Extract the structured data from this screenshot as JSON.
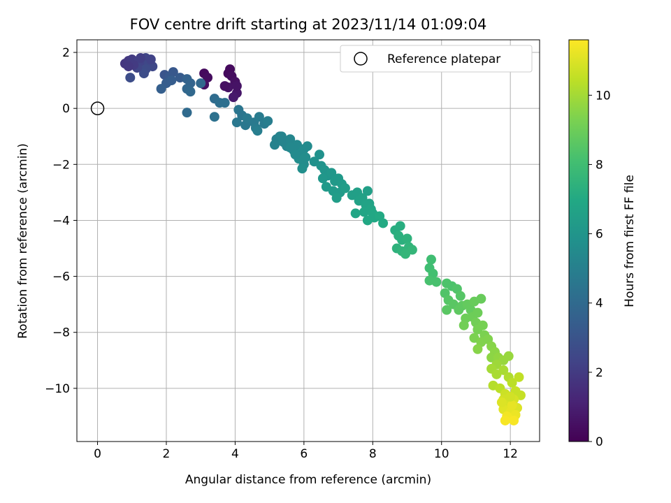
{
  "chart_data": {
    "type": "scatter",
    "title": "FOV centre drift starting at 2023/11/14 01:09:04",
    "xlabel": "Angular distance from reference (arcmin)",
    "ylabel": "Rotation from reference (arcmin)",
    "xlim": [
      -0.6,
      12.85
    ],
    "ylim": [
      -11.9,
      2.45
    ],
    "xticks": [
      0,
      2,
      4,
      6,
      8,
      10,
      12
    ],
    "yticks": [
      -10,
      -8,
      -6,
      -4,
      -2,
      0,
      2
    ],
    "grid": true,
    "legend": {
      "position": "top-right",
      "entries": [
        "Reference platepar"
      ]
    },
    "colormap": "viridis",
    "colorbar": {
      "label": "Hours from first FF file",
      "range": [
        0,
        11.6
      ],
      "ticks": [
        0,
        2,
        4,
        6,
        8,
        10
      ]
    },
    "reference_point": {
      "x": 0,
      "y": 0
    },
    "series": [
      {
        "points": [
          {
            "x": 3.1,
            "y": 1.25,
            "c": 0.3
          },
          {
            "x": 3.2,
            "y": 1.1,
            "c": 0.4
          },
          {
            "x": 3.1,
            "y": 0.85,
            "c": 0.5
          },
          {
            "x": 3.8,
            "y": 1.25,
            "c": 0.3
          },
          {
            "x": 3.85,
            "y": 1.4,
            "c": 0.3
          },
          {
            "x": 3.9,
            "y": 1.15,
            "c": 0.4
          },
          {
            "x": 4.0,
            "y": 0.95,
            "c": 0.5
          },
          {
            "x": 3.8,
            "y": 0.75,
            "c": 0.6
          },
          {
            "x": 4.05,
            "y": 0.55,
            "c": 0.7
          },
          {
            "x": 3.95,
            "y": 0.4,
            "c": 0.8
          },
          {
            "x": 3.7,
            "y": 0.8,
            "c": 0.5
          },
          {
            "x": 4.05,
            "y": 0.8,
            "c": 0.6
          },
          {
            "x": 0.8,
            "y": 1.6,
            "c": 1.8
          },
          {
            "x": 0.9,
            "y": 1.7,
            "c": 1.9
          },
          {
            "x": 1.0,
            "y": 1.75,
            "c": 2.0
          },
          {
            "x": 1.1,
            "y": 1.6,
            "c": 2.1
          },
          {
            "x": 1.2,
            "y": 1.7,
            "c": 2.2
          },
          {
            "x": 1.3,
            "y": 1.55,
            "c": 2.3
          },
          {
            "x": 1.4,
            "y": 1.8,
            "c": 2.4
          },
          {
            "x": 1.5,
            "y": 1.6,
            "c": 2.5
          },
          {
            "x": 1.6,
            "y": 1.5,
            "c": 2.5
          },
          {
            "x": 1.4,
            "y": 1.4,
            "c": 2.6
          },
          {
            "x": 1.35,
            "y": 1.25,
            "c": 2.7
          },
          {
            "x": 0.95,
            "y": 1.1,
            "c": 2.7
          },
          {
            "x": 1.15,
            "y": 1.45,
            "c": 2.4
          },
          {
            "x": 1.05,
            "y": 1.55,
            "c": 2.0
          },
          {
            "x": 0.9,
            "y": 1.5,
            "c": 1.9
          },
          {
            "x": 1.55,
            "y": 1.75,
            "c": 2.3
          },
          {
            "x": 1.25,
            "y": 1.8,
            "c": 2.1
          },
          {
            "x": 1.95,
            "y": 1.2,
            "c": 3.0
          },
          {
            "x": 2.1,
            "y": 1.15,
            "c": 3.2
          },
          {
            "x": 2.2,
            "y": 1.3,
            "c": 3.2
          },
          {
            "x": 2.4,
            "y": 1.1,
            "c": 3.3
          },
          {
            "x": 2.0,
            "y": 0.9,
            "c": 3.4
          },
          {
            "x": 1.85,
            "y": 0.7,
            "c": 3.5
          },
          {
            "x": 2.15,
            "y": 1.0,
            "c": 3.4
          },
          {
            "x": 2.6,
            "y": 1.05,
            "c": 3.6
          },
          {
            "x": 2.7,
            "y": 0.9,
            "c": 3.7
          },
          {
            "x": 2.6,
            "y": 0.7,
            "c": 3.8
          },
          {
            "x": 2.7,
            "y": 0.6,
            "c": 3.9
          },
          {
            "x": 2.6,
            "y": -0.15,
            "c": 4.0
          },
          {
            "x": 3.0,
            "y": 0.9,
            "c": 3.9
          },
          {
            "x": 3.4,
            "y": 0.35,
            "c": 4.1
          },
          {
            "x": 3.55,
            "y": 0.2,
            "c": 4.2
          },
          {
            "x": 3.7,
            "y": 0.2,
            "c": 4.2
          },
          {
            "x": 3.4,
            "y": -0.3,
            "c": 4.3
          },
          {
            "x": 4.1,
            "y": -0.05,
            "c": 4.5
          },
          {
            "x": 4.2,
            "y": -0.25,
            "c": 4.5
          },
          {
            "x": 4.05,
            "y": -0.5,
            "c": 4.6
          },
          {
            "x": 4.3,
            "y": -0.6,
            "c": 4.6
          },
          {
            "x": 4.35,
            "y": -0.35,
            "c": 4.7
          },
          {
            "x": 4.55,
            "y": -0.5,
            "c": 4.7
          },
          {
            "x": 4.6,
            "y": -0.7,
            "c": 4.8
          },
          {
            "x": 4.7,
            "y": -0.3,
            "c": 4.8
          },
          {
            "x": 4.85,
            "y": -0.55,
            "c": 4.8
          },
          {
            "x": 4.95,
            "y": -0.45,
            "c": 4.9
          },
          {
            "x": 4.65,
            "y": -0.8,
            "c": 4.9
          },
          {
            "x": 5.2,
            "y": -1.1,
            "c": 5.0
          },
          {
            "x": 5.3,
            "y": -1.0,
            "c": 5.1
          },
          {
            "x": 5.15,
            "y": -1.3,
            "c": 5.1
          },
          {
            "x": 5.4,
            "y": -1.2,
            "c": 5.2
          },
          {
            "x": 5.5,
            "y": -1.35,
            "c": 5.2
          },
          {
            "x": 5.6,
            "y": -1.1,
            "c": 5.3
          },
          {
            "x": 5.7,
            "y": -1.5,
            "c": 5.4
          },
          {
            "x": 5.8,
            "y": -1.3,
            "c": 5.4
          },
          {
            "x": 5.9,
            "y": -1.6,
            "c": 5.5
          },
          {
            "x": 6.0,
            "y": -1.45,
            "c": 5.5
          },
          {
            "x": 5.85,
            "y": -1.8,
            "c": 5.6
          },
          {
            "x": 6.0,
            "y": -2.0,
            "c": 5.6
          },
          {
            "x": 5.95,
            "y": -2.15,
            "c": 5.7
          },
          {
            "x": 5.6,
            "y": -1.4,
            "c": 5.4
          },
          {
            "x": 5.75,
            "y": -1.65,
            "c": 5.5
          },
          {
            "x": 6.05,
            "y": -1.75,
            "c": 5.6
          },
          {
            "x": 6.1,
            "y": -1.35,
            "c": 5.5
          },
          {
            "x": 5.35,
            "y": -1.0,
            "c": 5.2
          },
          {
            "x": 6.3,
            "y": -1.9,
            "c": 5.8
          },
          {
            "x": 6.45,
            "y": -1.65,
            "c": 5.8
          },
          {
            "x": 6.5,
            "y": -2.05,
            "c": 5.9
          },
          {
            "x": 6.6,
            "y": -2.2,
            "c": 6.0
          },
          {
            "x": 6.7,
            "y": -2.4,
            "c": 6.0
          },
          {
            "x": 6.55,
            "y": -2.5,
            "c": 6.1
          },
          {
            "x": 6.8,
            "y": -2.3,
            "c": 6.1
          },
          {
            "x": 6.9,
            "y": -2.6,
            "c": 6.2
          },
          {
            "x": 7.0,
            "y": -2.5,
            "c": 6.2
          },
          {
            "x": 6.65,
            "y": -2.8,
            "c": 6.2
          },
          {
            "x": 6.85,
            "y": -2.95,
            "c": 6.3
          },
          {
            "x": 7.05,
            "y": -3.0,
            "c": 6.3
          },
          {
            "x": 7.1,
            "y": -2.7,
            "c": 6.3
          },
          {
            "x": 6.95,
            "y": -3.2,
            "c": 6.4
          },
          {
            "x": 7.2,
            "y": -2.85,
            "c": 6.4
          },
          {
            "x": 7.4,
            "y": -3.1,
            "c": 6.5
          },
          {
            "x": 7.55,
            "y": -3.0,
            "c": 6.5
          },
          {
            "x": 7.6,
            "y": -3.3,
            "c": 6.6
          },
          {
            "x": 7.7,
            "y": -3.2,
            "c": 6.6
          },
          {
            "x": 7.8,
            "y": -3.45,
            "c": 6.7
          },
          {
            "x": 7.85,
            "y": -2.95,
            "c": 6.5
          },
          {
            "x": 7.9,
            "y": -3.4,
            "c": 6.7
          },
          {
            "x": 7.95,
            "y": -3.6,
            "c": 6.8
          },
          {
            "x": 7.75,
            "y": -3.7,
            "c": 6.8
          },
          {
            "x": 7.5,
            "y": -3.75,
            "c": 6.8
          },
          {
            "x": 8.0,
            "y": -3.75,
            "c": 6.9
          },
          {
            "x": 8.05,
            "y": -3.9,
            "c": 6.9
          },
          {
            "x": 8.2,
            "y": -3.85,
            "c": 7.0
          },
          {
            "x": 8.3,
            "y": -4.1,
            "c": 7.0
          },
          {
            "x": 7.85,
            "y": -4.0,
            "c": 6.9
          },
          {
            "x": 8.65,
            "y": -4.35,
            "c": 7.2
          },
          {
            "x": 8.8,
            "y": -4.2,
            "c": 7.2
          },
          {
            "x": 8.75,
            "y": -4.55,
            "c": 7.3
          },
          {
            "x": 8.85,
            "y": -4.7,
            "c": 7.3
          },
          {
            "x": 9.0,
            "y": -4.65,
            "c": 7.4
          },
          {
            "x": 8.7,
            "y": -5.0,
            "c": 7.4
          },
          {
            "x": 8.85,
            "y": -5.1,
            "c": 7.5
          },
          {
            "x": 9.05,
            "y": -4.95,
            "c": 7.5
          },
          {
            "x": 9.15,
            "y": -5.05,
            "c": 7.6
          },
          {
            "x": 8.95,
            "y": -5.2,
            "c": 7.6
          },
          {
            "x": 9.7,
            "y": -5.4,
            "c": 8.0
          },
          {
            "x": 9.65,
            "y": -5.7,
            "c": 8.0
          },
          {
            "x": 9.75,
            "y": -5.9,
            "c": 8.1
          },
          {
            "x": 9.65,
            "y": -6.15,
            "c": 8.2
          },
          {
            "x": 9.85,
            "y": -6.2,
            "c": 8.2
          },
          {
            "x": 10.15,
            "y": -6.25,
            "c": 8.3
          },
          {
            "x": 10.3,
            "y": -6.35,
            "c": 8.3
          },
          {
            "x": 10.45,
            "y": -6.45,
            "c": 8.4
          },
          {
            "x": 10.1,
            "y": -6.6,
            "c": 8.4
          },
          {
            "x": 10.55,
            "y": -6.7,
            "c": 8.5
          },
          {
            "x": 10.2,
            "y": -6.85,
            "c": 8.5
          },
          {
            "x": 10.35,
            "y": -7.0,
            "c": 8.6
          },
          {
            "x": 10.15,
            "y": -7.2,
            "c": 8.6
          },
          {
            "x": 10.5,
            "y": -7.2,
            "c": 8.7
          },
          {
            "x": 10.6,
            "y": -7.05,
            "c": 8.7
          },
          {
            "x": 10.75,
            "y": -7.0,
            "c": 8.8
          },
          {
            "x": 10.85,
            "y": -7.2,
            "c": 8.8
          },
          {
            "x": 10.95,
            "y": -6.9,
            "c": 8.9
          },
          {
            "x": 11.15,
            "y": -6.8,
            "c": 8.9
          },
          {
            "x": 10.7,
            "y": -7.5,
            "c": 9.0
          },
          {
            "x": 10.9,
            "y": -7.45,
            "c": 9.0
          },
          {
            "x": 11.05,
            "y": -7.3,
            "c": 9.0
          },
          {
            "x": 10.65,
            "y": -7.75,
            "c": 9.1
          },
          {
            "x": 11.0,
            "y": -7.65,
            "c": 9.1
          },
          {
            "x": 11.2,
            "y": -7.75,
            "c": 9.2
          },
          {
            "x": 11.05,
            "y": -7.9,
            "c": 9.2
          },
          {
            "x": 11.25,
            "y": -8.1,
            "c": 9.3
          },
          {
            "x": 10.95,
            "y": -8.2,
            "c": 9.3
          },
          {
            "x": 11.15,
            "y": -8.35,
            "c": 9.4
          },
          {
            "x": 11.35,
            "y": -8.25,
            "c": 9.4
          },
          {
            "x": 11.45,
            "y": -8.5,
            "c": 9.5
          },
          {
            "x": 11.55,
            "y": -8.7,
            "c": 9.6
          },
          {
            "x": 11.05,
            "y": -8.6,
            "c": 9.5
          },
          {
            "x": 11.45,
            "y": -8.9,
            "c": 9.6
          },
          {
            "x": 11.65,
            "y": -8.9,
            "c": 9.7
          },
          {
            "x": 11.8,
            "y": -9.0,
            "c": 9.8
          },
          {
            "x": 11.95,
            "y": -8.85,
            "c": 9.8
          },
          {
            "x": 11.6,
            "y": -9.15,
            "c": 9.9
          },
          {
            "x": 11.45,
            "y": -9.3,
            "c": 10.0
          },
          {
            "x": 11.6,
            "y": -9.5,
            "c": 10.1
          },
          {
            "x": 11.8,
            "y": -9.35,
            "c": 10.1
          },
          {
            "x": 11.95,
            "y": -9.6,
            "c": 10.2
          },
          {
            "x": 11.5,
            "y": -9.9,
            "c": 10.3
          },
          {
            "x": 11.7,
            "y": -10.0,
            "c": 10.4
          },
          {
            "x": 12.05,
            "y": -9.8,
            "c": 10.4
          },
          {
            "x": 12.25,
            "y": -9.6,
            "c": 10.5
          },
          {
            "x": 12.15,
            "y": -10.1,
            "c": 10.6
          },
          {
            "x": 12.3,
            "y": -10.25,
            "c": 10.6
          },
          {
            "x": 11.85,
            "y": -10.2,
            "c": 10.7
          },
          {
            "x": 11.8,
            "y": -10.4,
            "c": 10.8
          },
          {
            "x": 11.95,
            "y": -10.55,
            "c": 10.9
          },
          {
            "x": 12.1,
            "y": -10.4,
            "c": 10.9
          },
          {
            "x": 12.2,
            "y": -10.7,
            "c": 11.0
          },
          {
            "x": 11.8,
            "y": -10.75,
            "c": 11.1
          },
          {
            "x": 12.0,
            "y": -10.85,
            "c": 11.2
          },
          {
            "x": 12.05,
            "y": -10.6,
            "c": 11.2
          },
          {
            "x": 12.15,
            "y": -10.95,
            "c": 11.3
          },
          {
            "x": 11.9,
            "y": -11.0,
            "c": 11.4
          },
          {
            "x": 11.85,
            "y": -11.15,
            "c": 11.5
          },
          {
            "x": 12.1,
            "y": -11.15,
            "c": 11.5
          },
          {
            "x": 11.75,
            "y": -10.5,
            "c": 11.0
          },
          {
            "x": 12.0,
            "y": -10.3,
            "c": 10.8
          }
        ]
      }
    ]
  }
}
